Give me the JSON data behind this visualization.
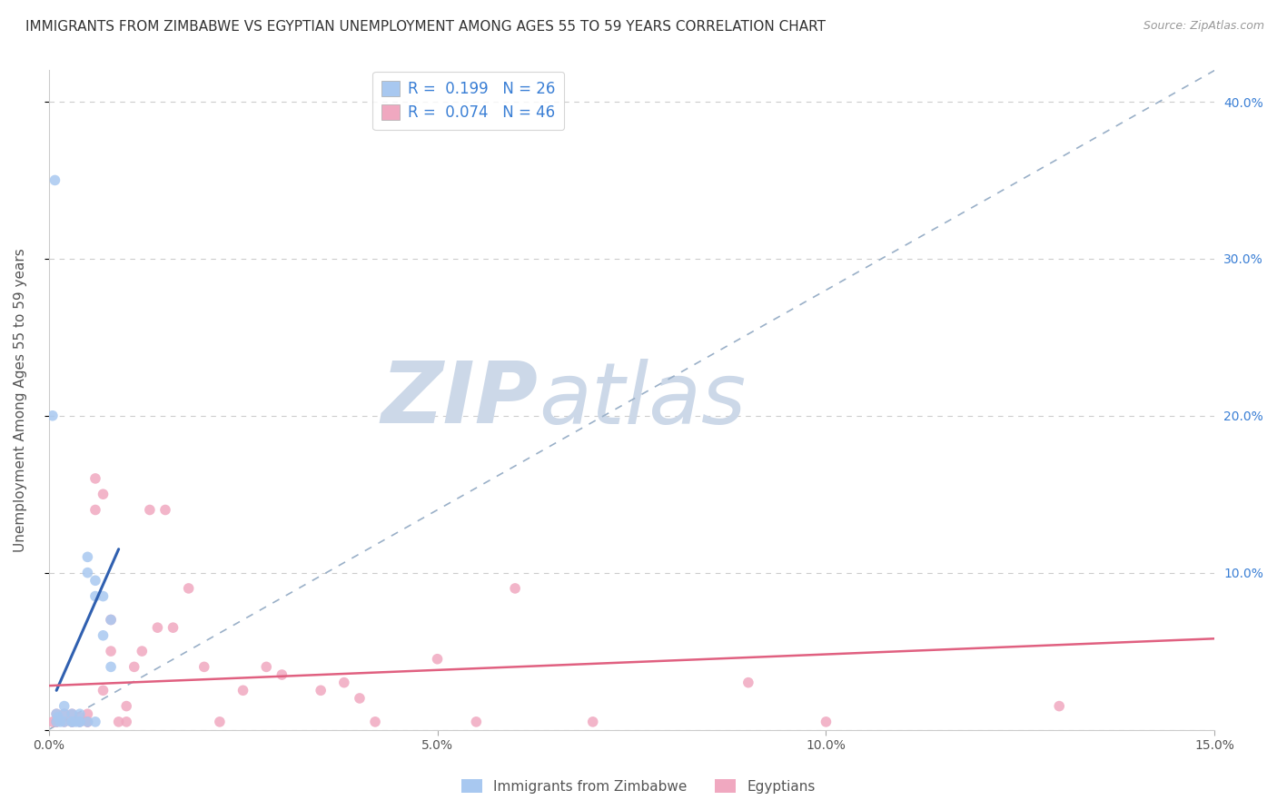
{
  "title": "IMMIGRANTS FROM ZIMBABWE VS EGYPTIAN UNEMPLOYMENT AMONG AGES 55 TO 59 YEARS CORRELATION CHART",
  "source": "Source: ZipAtlas.com",
  "ylabel": "Unemployment Among Ages 55 to 59 years",
  "xlim": [
    0.0,
    0.15
  ],
  "ylim": [
    0.0,
    0.42
  ],
  "xticks": [
    0.0,
    0.05,
    0.1,
    0.15
  ],
  "xtick_labels": [
    "0.0%",
    "5.0%",
    "10.0%",
    "15.0%"
  ],
  "yticks": [
    0.0,
    0.1,
    0.2,
    0.3,
    0.4
  ],
  "ytick_labels_right": [
    "",
    "10.0%",
    "20.0%",
    "30.0%",
    "40.0%"
  ],
  "legend_label_blue": "R =  0.199   N = 26",
  "legend_label_pink": "R =  0.074   N = 46",
  "blue_scatter_x": [
    0.0008,
    0.001,
    0.001,
    0.0012,
    0.0015,
    0.002,
    0.002,
    0.002,
    0.003,
    0.003,
    0.003,
    0.0035,
    0.004,
    0.004,
    0.004,
    0.005,
    0.005,
    0.005,
    0.006,
    0.006,
    0.006,
    0.007,
    0.007,
    0.008,
    0.008,
    0.0005
  ],
  "blue_scatter_y": [
    0.35,
    0.005,
    0.01,
    0.008,
    0.005,
    0.01,
    0.015,
    0.005,
    0.005,
    0.01,
    0.005,
    0.005,
    0.005,
    0.01,
    0.005,
    0.1,
    0.11,
    0.005,
    0.085,
    0.095,
    0.005,
    0.085,
    0.06,
    0.07,
    0.04,
    0.2
  ],
  "pink_scatter_x": [
    0.0005,
    0.001,
    0.001,
    0.001,
    0.002,
    0.002,
    0.003,
    0.003,
    0.003,
    0.004,
    0.004,
    0.005,
    0.005,
    0.005,
    0.006,
    0.006,
    0.007,
    0.007,
    0.008,
    0.008,
    0.009,
    0.01,
    0.01,
    0.011,
    0.012,
    0.013,
    0.014,
    0.015,
    0.016,
    0.018,
    0.02,
    0.022,
    0.025,
    0.028,
    0.03,
    0.035,
    0.038,
    0.04,
    0.042,
    0.05,
    0.055,
    0.06,
    0.07,
    0.09,
    0.1,
    0.13
  ],
  "pink_scatter_y": [
    0.005,
    0.005,
    0.01,
    0.005,
    0.005,
    0.01,
    0.005,
    0.01,
    0.005,
    0.005,
    0.008,
    0.005,
    0.01,
    0.005,
    0.14,
    0.16,
    0.15,
    0.025,
    0.05,
    0.07,
    0.005,
    0.015,
    0.005,
    0.04,
    0.05,
    0.14,
    0.065,
    0.14,
    0.065,
    0.09,
    0.04,
    0.005,
    0.025,
    0.04,
    0.035,
    0.025,
    0.03,
    0.02,
    0.005,
    0.045,
    0.005,
    0.09,
    0.005,
    0.03,
    0.005,
    0.015
  ],
  "blue_line_x": [
    0.001,
    0.009
  ],
  "blue_line_y": [
    0.025,
    0.115
  ],
  "pink_line_x": [
    0.0,
    0.15
  ],
  "pink_line_y": [
    0.028,
    0.058
  ],
  "blue_line_color": "#3060b0",
  "pink_line_color": "#e06080",
  "dash_line_color": "#9ab0c8",
  "scatter_dot_size": 70,
  "blue_dot_color": "#a8c8f0",
  "pink_dot_color": "#f0a8c0",
  "watermark_zip": "ZIP",
  "watermark_atlas": "atlas",
  "watermark_color": "#ccd8e8",
  "background_color": "#ffffff",
  "title_fontsize": 11,
  "axis_label_fontsize": 11,
  "tick_fontsize": 10,
  "right_tick_color": "#3a7fd5",
  "left_tick_color": "#888888"
}
